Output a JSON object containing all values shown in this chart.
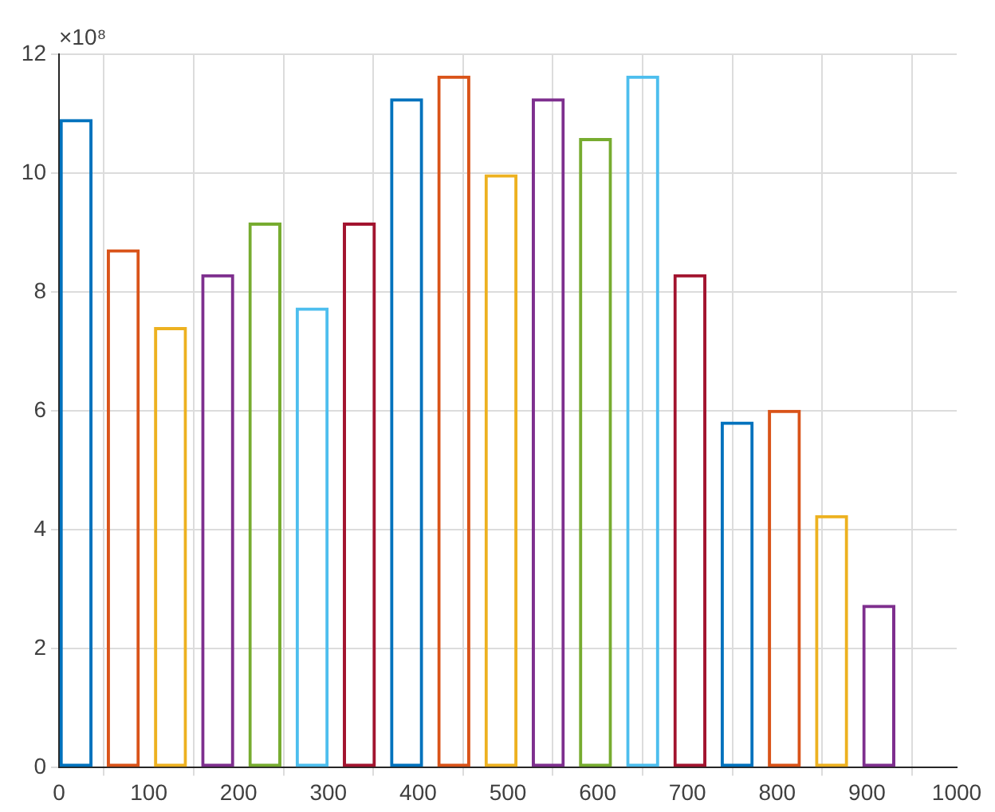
{
  "chart_data": {
    "type": "bar",
    "x": [
      19,
      71.6,
      124.2,
      176.8,
      229.4,
      282,
      334.6,
      387.2,
      439.8,
      492.4,
      545,
      597.6,
      650.2,
      702.8,
      755.4,
      808,
      860.6,
      913.2
    ],
    "values": [
      10.91,
      8.72,
      7.41,
      8.3,
      9.17,
      7.74,
      9.17,
      11.26,
      11.64,
      9.98,
      11.26,
      10.59,
      11.64,
      8.3,
      5.82,
      6.02,
      4.25,
      2.74
    ],
    "colors": [
      "#0072bd",
      "#d95319",
      "#edb120",
      "#7e2f8e",
      "#77ac30",
      "#4dbeee",
      "#a2142f",
      "#0072bd",
      "#d95319",
      "#edb120",
      "#7e2f8e",
      "#77ac30",
      "#4dbeee",
      "#a2142f",
      "#0072bd",
      "#d95319",
      "#edb120",
      "#7e2f8e"
    ],
    "xlim": [
      0,
      1000
    ],
    "xticks": [
      0,
      100,
      200,
      300,
      400,
      500,
      600,
      700,
      800,
      900,
      1000
    ],
    "ylim": [
      0,
      12
    ],
    "yticks": [
      0,
      2,
      4,
      6,
      8,
      10,
      12
    ],
    "grid": true,
    "annotations": [
      "×10⁸"
    ]
  }
}
